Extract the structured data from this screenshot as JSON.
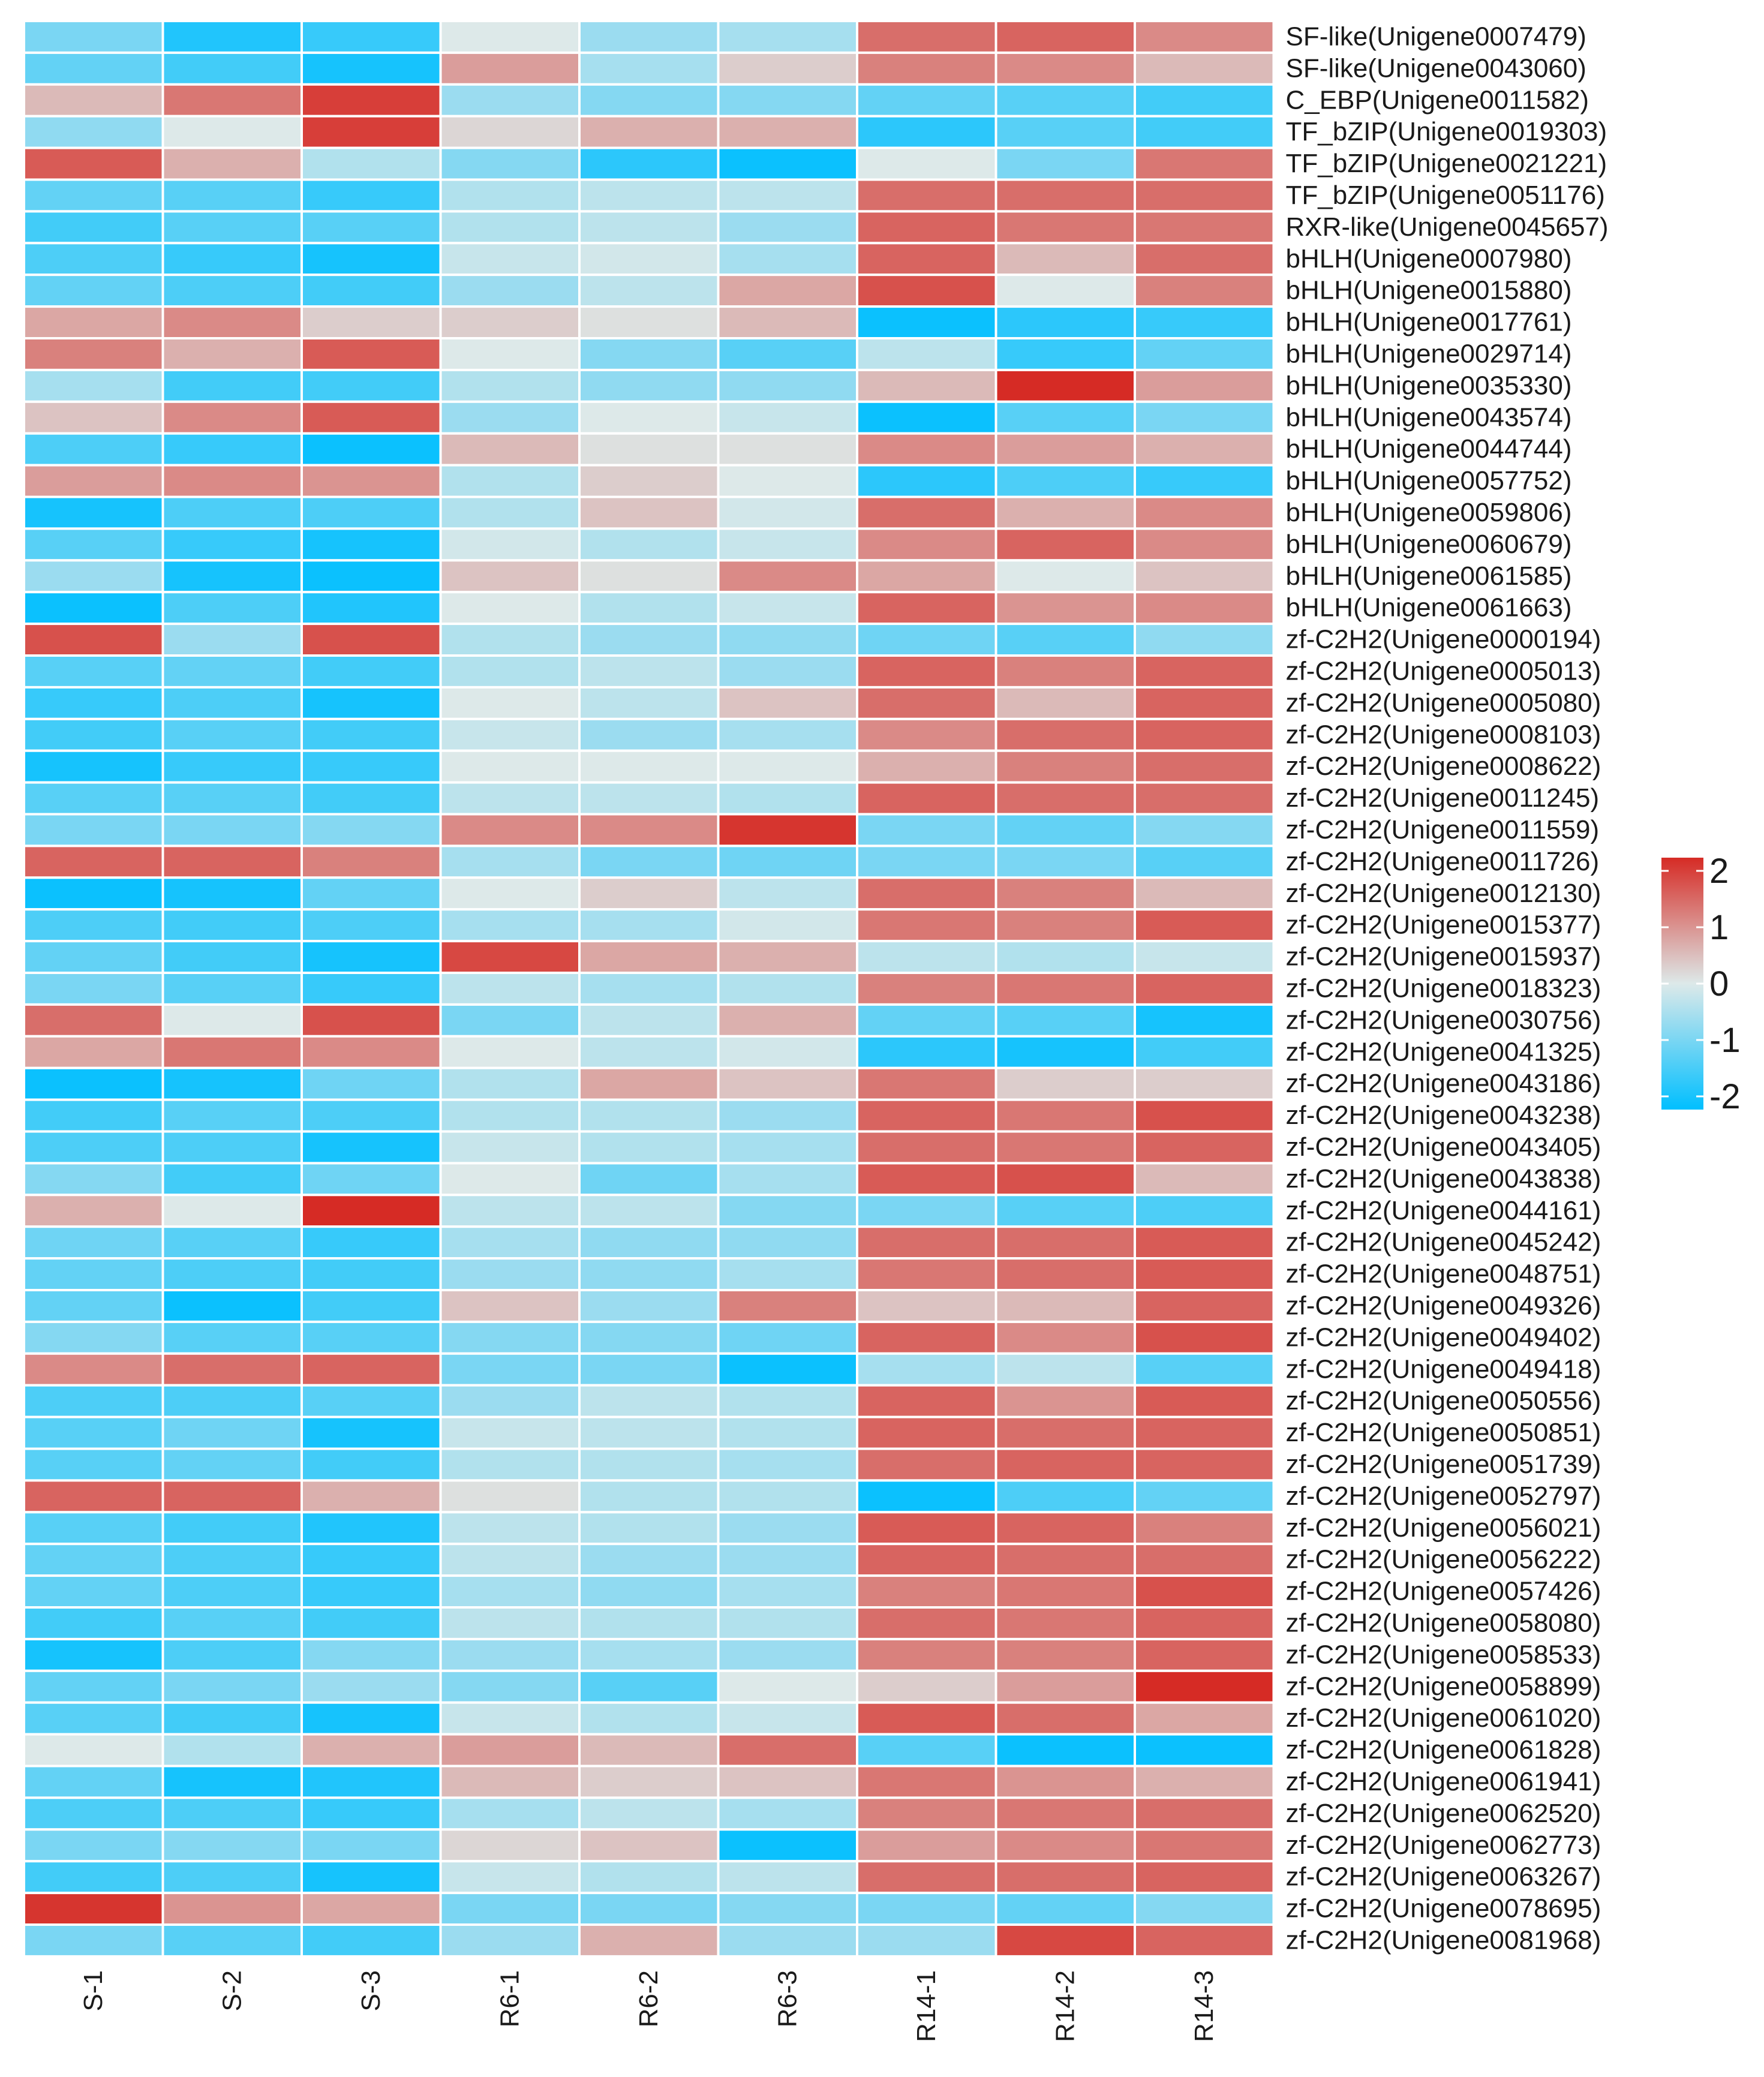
{
  "chart_data": {
    "type": "heatmap",
    "title": "",
    "columns": [
      "S-1",
      "S-2",
      "S-3",
      "R6-1",
      "R6-2",
      "R6-3",
      "R14-1",
      "R14-2",
      "R14-3"
    ],
    "rows": [
      "SF-like(Unigene0007479)",
      "SF-like(Unigene0043060)",
      "C_EBP(Unigene0011582)",
      "TF_bZIP(Unigene0019303)",
      "TF_bZIP(Unigene0021221)",
      "TF_bZIP(Unigene0051176)",
      "RXR-like(Unigene0045657)",
      "bHLH(Unigene0007980)",
      "bHLH(Unigene0015880)",
      "bHLH(Unigene0017761)",
      "bHLH(Unigene0029714)",
      "bHLH(Unigene0035330)",
      "bHLH(Unigene0043574)",
      "bHLH(Unigene0044744)",
      "bHLH(Unigene0057752)",
      "bHLH(Unigene0059806)",
      "bHLH(Unigene0060679)",
      "bHLH(Unigene0061585)",
      "bHLH(Unigene0061663)",
      "zf-C2H2(Unigene0000194)",
      "zf-C2H2(Unigene0005013)",
      "zf-C2H2(Unigene0005080)",
      "zf-C2H2(Unigene0008103)",
      "zf-C2H2(Unigene0008622)",
      "zf-C2H2(Unigene0011245)",
      "zf-C2H2(Unigene0011559)",
      "zf-C2H2(Unigene0011726)",
      "zf-C2H2(Unigene0012130)",
      "zf-C2H2(Unigene0015377)",
      "zf-C2H2(Unigene0015937)",
      "zf-C2H2(Unigene0018323)",
      "zf-C2H2(Unigene0030756)",
      "zf-C2H2(Unigene0041325)",
      "zf-C2H2(Unigene0043186)",
      "zf-C2H2(Unigene0043238)",
      "zf-C2H2(Unigene0043405)",
      "zf-C2H2(Unigene0043838)",
      "zf-C2H2(Unigene0044161)",
      "zf-C2H2(Unigene0045242)",
      "zf-C2H2(Unigene0048751)",
      "zf-C2H2(Unigene0049326)",
      "zf-C2H2(Unigene0049402)",
      "zf-C2H2(Unigene0049418)",
      "zf-C2H2(Unigene0050556)",
      "zf-C2H2(Unigene0050851)",
      "zf-C2H2(Unigene0051739)",
      "zf-C2H2(Unigene0052797)",
      "zf-C2H2(Unigene0056021)",
      "zf-C2H2(Unigene0056222)",
      "zf-C2H2(Unigene0057426)",
      "zf-C2H2(Unigene0058080)",
      "zf-C2H2(Unigene0058533)",
      "zf-C2H2(Unigene0058899)",
      "zf-C2H2(Unigene0061020)",
      "zf-C2H2(Unigene0061828)",
      "zf-C2H2(Unigene0061941)",
      "zf-C2H2(Unigene0062520)",
      "zf-C2H2(Unigene0062773)",
      "zf-C2H2(Unigene0063267)",
      "zf-C2H2(Unigene0078695)",
      "zf-C2H2(Unigene0081968)"
    ],
    "values": [
      [
        -0.9,
        -1.7,
        -1.5,
        0.0,
        -0.6,
        -0.5,
        1.3,
        1.4,
        1.0
      ],
      [
        -1.1,
        -1.4,
        -1.8,
        0.8,
        -0.5,
        0.3,
        1.1,
        1.0,
        0.5
      ],
      [
        0.5,
        1.2,
        1.8,
        -0.6,
        -0.8,
        -0.8,
        -1.1,
        -1.2,
        -1.4
      ],
      [
        -0.7,
        0.0,
        1.8,
        0.2,
        0.6,
        0.6,
        -1.6,
        -1.2,
        -1.4
      ],
      [
        1.5,
        0.6,
        -0.4,
        -0.8,
        -1.6,
        -1.9,
        0.0,
        -0.9,
        1.2
      ],
      [
        -1.1,
        -1.2,
        -1.5,
        -0.4,
        -0.3,
        -0.3,
        1.3,
        1.3,
        1.3
      ],
      [
        -1.4,
        -1.2,
        -1.2,
        -0.4,
        -0.3,
        -0.6,
        1.4,
        1.2,
        1.2
      ],
      [
        -1.3,
        -1.5,
        -1.8,
        -0.2,
        -0.1,
        -0.5,
        1.4,
        0.5,
        1.3
      ],
      [
        -1.1,
        -1.3,
        -1.4,
        -0.6,
        -0.3,
        0.7,
        1.6,
        0.0,
        1.1
      ],
      [
        0.7,
        1.0,
        0.3,
        0.3,
        0.1,
        0.5,
        -1.9,
        -1.6,
        -1.5
      ],
      [
        1.1,
        0.6,
        1.5,
        0.0,
        -0.8,
        -1.2,
        -0.3,
        -1.5,
        -1.1
      ],
      [
        -0.5,
        -1.4,
        -1.4,
        -0.4,
        -0.7,
        -0.7,
        0.5,
        2.3,
        0.8
      ],
      [
        0.4,
        1.0,
        1.5,
        -0.6,
        0.0,
        -0.2,
        -1.9,
        -1.2,
        -0.9
      ],
      [
        -1.3,
        -1.5,
        -1.9,
        0.5,
        0.1,
        0.1,
        1.0,
        0.8,
        0.6
      ],
      [
        0.8,
        1.0,
        0.9,
        -0.4,
        0.3,
        0.0,
        -1.6,
        -1.3,
        -1.5
      ],
      [
        -1.8,
        -1.3,
        -1.3,
        -0.4,
        0.4,
        -0.1,
        1.3,
        0.6,
        1.0
      ],
      [
        -1.2,
        -1.5,
        -1.8,
        -0.1,
        -0.4,
        -0.2,
        1.0,
        1.4,
        1.0
      ],
      [
        -0.6,
        -1.8,
        -1.9,
        0.4,
        0.1,
        1.0,
        0.7,
        0.0,
        0.4
      ],
      [
        -1.9,
        -1.3,
        -1.7,
        0.0,
        -0.4,
        -0.2,
        1.4,
        0.9,
        1.0
      ],
      [
        1.6,
        -0.6,
        1.6,
        -0.4,
        -0.6,
        -0.7,
        -1.0,
        -1.2,
        -0.7
      ],
      [
        -1.2,
        -1.1,
        -1.4,
        -0.4,
        -0.3,
        -0.6,
        1.4,
        1.1,
        1.4
      ],
      [
        -1.5,
        -1.3,
        -1.8,
        0.0,
        -0.3,
        0.4,
        1.3,
        0.5,
        1.4
      ],
      [
        -1.4,
        -1.2,
        -1.4,
        -0.2,
        -0.6,
        -0.5,
        1.0,
        1.3,
        1.4
      ],
      [
        -1.8,
        -1.5,
        -1.5,
        0.0,
        0.0,
        0.0,
        0.6,
        1.1,
        1.3
      ],
      [
        -1.2,
        -1.2,
        -1.4,
        -0.3,
        -0.3,
        -0.4,
        1.4,
        1.3,
        1.3
      ],
      [
        -0.9,
        -0.9,
        -0.8,
        1.0,
        1.0,
        1.9,
        -0.9,
        -1.1,
        -0.8
      ],
      [
        1.4,
        1.4,
        1.1,
        -0.5,
        -0.9,
        -1.0,
        -0.9,
        -0.9,
        -1.2
      ],
      [
        -1.9,
        -1.8,
        -1.1,
        0.0,
        0.3,
        -0.3,
        1.3,
        1.1,
        0.5
      ],
      [
        -1.3,
        -1.4,
        -1.3,
        -0.5,
        -0.5,
        -0.1,
        1.2,
        1.1,
        1.5
      ],
      [
        -1.1,
        -1.4,
        -1.8,
        1.7,
        0.7,
        0.6,
        -0.3,
        -0.4,
        -0.2
      ],
      [
        -0.9,
        -1.2,
        -1.5,
        -0.3,
        -0.5,
        -0.4,
        1.1,
        1.2,
        1.4
      ],
      [
        1.3,
        0.0,
        1.6,
        -0.9,
        -0.3,
        0.6,
        -1.1,
        -1.2,
        -1.8
      ],
      [
        0.7,
        1.2,
        1.0,
        0.0,
        -0.3,
        -0.1,
        -1.6,
        -1.8,
        -1.4
      ],
      [
        -1.9,
        -1.8,
        -1.0,
        -0.4,
        0.7,
        0.4,
        1.2,
        0.3,
        0.3
      ],
      [
        -1.4,
        -1.2,
        -1.3,
        -0.4,
        -0.4,
        -0.6,
        1.4,
        1.2,
        1.6
      ],
      [
        -1.3,
        -1.3,
        -1.8,
        -0.2,
        -0.4,
        -0.5,
        1.3,
        1.2,
        1.4
      ],
      [
        -0.8,
        -1.4,
        -1.0,
        0.0,
        -1.0,
        -0.5,
        1.5,
        1.6,
        0.5
      ],
      [
        0.6,
        0.0,
        2.3,
        -0.3,
        -0.3,
        -0.8,
        -0.9,
        -1.2,
        -1.3
      ],
      [
        -1.0,
        -1.2,
        -1.5,
        -0.5,
        -0.7,
        -0.7,
        1.3,
        1.3,
        1.5
      ],
      [
        -1.1,
        -1.3,
        -1.4,
        -0.6,
        -0.7,
        -0.5,
        1.2,
        1.3,
        1.5
      ],
      [
        -1.1,
        -1.9,
        -1.4,
        0.4,
        -0.6,
        1.1,
        0.4,
        0.5,
        1.4
      ],
      [
        -0.8,
        -1.2,
        -1.2,
        -0.8,
        -0.8,
        -1.0,
        1.4,
        1.0,
        1.6
      ],
      [
        1.0,
        1.3,
        1.4,
        -0.9,
        -0.9,
        -1.9,
        -0.5,
        -0.3,
        -1.2
      ],
      [
        -1.3,
        -1.3,
        -1.2,
        -0.6,
        -0.3,
        -0.4,
        1.4,
        0.9,
        1.5
      ],
      [
        -1.2,
        -1.0,
        -1.8,
        -0.2,
        -0.3,
        -0.4,
        1.4,
        1.3,
        1.4
      ],
      [
        -1.2,
        -1.1,
        -1.4,
        -0.4,
        -0.4,
        -0.5,
        1.3,
        1.4,
        1.4
      ],
      [
        1.4,
        1.4,
        0.6,
        0.1,
        -0.4,
        -0.4,
        -1.9,
        -1.3,
        -1.1
      ],
      [
        -1.2,
        -1.4,
        -1.7,
        -0.3,
        -0.4,
        -0.6,
        1.5,
        1.4,
        1.1
      ],
      [
        -1.1,
        -1.3,
        -1.5,
        -0.3,
        -0.6,
        -0.6,
        1.4,
        1.3,
        1.3
      ],
      [
        -1.1,
        -1.3,
        -1.5,
        -0.5,
        -0.7,
        -0.5,
        1.1,
        1.2,
        1.6
      ],
      [
        -1.4,
        -1.2,
        -1.4,
        -0.3,
        -0.4,
        -0.4,
        1.3,
        1.2,
        1.4
      ],
      [
        -1.8,
        -1.3,
        -0.8,
        -0.6,
        -0.5,
        -0.6,
        1.1,
        1.1,
        1.4
      ],
      [
        -1.1,
        -0.9,
        -0.6,
        -0.8,
        -1.2,
        0.0,
        0.3,
        0.8,
        2.2
      ],
      [
        -1.2,
        -1.4,
        -1.8,
        -0.2,
        -0.4,
        -0.2,
        1.5,
        1.3,
        0.7
      ],
      [
        0.0,
        -0.4,
        0.6,
        0.8,
        0.5,
        1.3,
        -1.2,
        -1.9,
        -1.9
      ],
      [
        -1.1,
        -1.8,
        -1.7,
        0.5,
        0.3,
        0.4,
        1.2,
        0.9,
        0.6
      ],
      [
        -1.3,
        -1.3,
        -1.5,
        -0.5,
        -0.3,
        -0.5,
        1.1,
        1.2,
        1.3
      ],
      [
        -0.9,
        -0.8,
        -0.9,
        0.2,
        0.4,
        -1.9,
        0.8,
        1.0,
        1.2
      ],
      [
        -1.4,
        -1.3,
        -1.8,
        -0.2,
        -0.4,
        -0.3,
        1.3,
        1.3,
        1.4
      ],
      [
        1.9,
        0.9,
        0.7,
        -0.9,
        -0.9,
        -0.8,
        -0.9,
        -1.1,
        -0.8
      ],
      [
        -0.9,
        -1.2,
        -1.4,
        -0.6,
        0.6,
        -0.6,
        -0.6,
        1.7,
        1.4
      ]
    ],
    "color_scale": {
      "min": -2,
      "max": 2,
      "low_color": "#00bfff",
      "mid_color": "#dde9e9",
      "high_color": "#d62b25"
    },
    "legend": {
      "ticks": [
        2,
        1,
        0,
        -1,
        -2
      ],
      "position": "right"
    },
    "xlabel": "",
    "ylabel": ""
  }
}
